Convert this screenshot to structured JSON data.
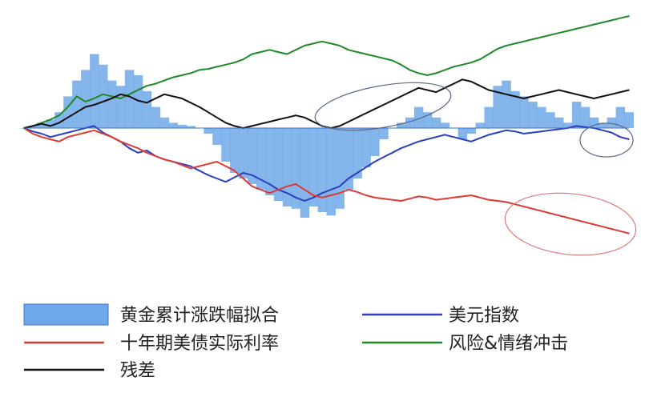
{
  "chart_data": {
    "type": "area",
    "title": "",
    "xlabel": "",
    "ylabel": "",
    "grid": false,
    "ylim": [
      -1.0,
      1.0
    ],
    "legend_position": "bottom",
    "series": [
      {
        "name": "黄金累计涨跌幅拟合",
        "kind": "area",
        "color": "#6fa8e8",
        "border": "#3a73c9",
        "values": [
          0.0,
          0.02,
          0.05,
          0.08,
          0.15,
          0.3,
          0.45,
          0.55,
          0.7,
          0.6,
          0.45,
          0.4,
          0.55,
          0.5,
          0.35,
          0.2,
          0.1,
          0.05,
          0.03,
          0.02,
          0.0,
          -0.05,
          -0.15,
          -0.3,
          -0.4,
          -0.45,
          -0.5,
          -0.55,
          -0.6,
          -0.65,
          -0.7,
          -0.72,
          -0.8,
          -0.7,
          -0.75,
          -0.78,
          -0.72,
          -0.55,
          -0.45,
          -0.35,
          -0.25,
          -0.1,
          0.0,
          0.05,
          0.1,
          0.2,
          0.15,
          0.1,
          0.05,
          0.0,
          -0.1,
          -0.05,
          0.05,
          0.2,
          0.4,
          0.45,
          0.35,
          0.3,
          0.25,
          0.2,
          0.15,
          0.1,
          0.05,
          0.25,
          0.2,
          0.1,
          0.05,
          0.1,
          0.2,
          0.15
        ]
      },
      {
        "name": "美元指数",
        "kind": "line",
        "color": "#2b3fbf",
        "values": [
          0.0,
          -0.03,
          -0.05,
          -0.08,
          -0.06,
          -0.04,
          -0.02,
          0.0,
          0.02,
          -0.04,
          -0.08,
          -0.12,
          -0.18,
          -0.22,
          -0.2,
          -0.25,
          -0.28,
          -0.3,
          -0.32,
          -0.34,
          -0.38,
          -0.42,
          -0.45,
          -0.48,
          -0.44,
          -0.4,
          -0.42,
          -0.46,
          -0.5,
          -0.55,
          -0.58,
          -0.62,
          -0.65,
          -0.62,
          -0.58,
          -0.55,
          -0.52,
          -0.45,
          -0.4,
          -0.35,
          -0.3,
          -0.26,
          -0.22,
          -0.18,
          -0.15,
          -0.12,
          -0.1,
          -0.08,
          -0.06,
          -0.08,
          -0.1,
          -0.12,
          -0.09,
          -0.06,
          -0.04,
          -0.02,
          -0.03,
          -0.05,
          -0.04,
          -0.03,
          -0.02,
          -0.01,
          0.0,
          0.02,
          0.01,
          0.0,
          -0.02,
          -0.04,
          -0.08,
          -0.1
        ]
      },
      {
        "name": "十年期美债实际利率",
        "kind": "line",
        "color": "#e03a34",
        "values": [
          0.0,
          -0.05,
          -0.08,
          -0.1,
          -0.12,
          -0.08,
          -0.06,
          -0.04,
          -0.02,
          -0.05,
          -0.08,
          -0.12,
          -0.15,
          -0.18,
          -0.22,
          -0.25,
          -0.28,
          -0.3,
          -0.33,
          -0.36,
          -0.34,
          -0.32,
          -0.3,
          -0.34,
          -0.38,
          -0.45,
          -0.52,
          -0.55,
          -0.58,
          -0.55,
          -0.52,
          -0.5,
          -0.55,
          -0.6,
          -0.62,
          -0.6,
          -0.58,
          -0.55,
          -0.57,
          -0.6,
          -0.62,
          -0.63,
          -0.64,
          -0.65,
          -0.63,
          -0.61,
          -0.62,
          -0.64,
          -0.63,
          -0.62,
          -0.61,
          -0.6,
          -0.62,
          -0.64,
          -0.65,
          -0.66,
          -0.68,
          -0.7,
          -0.72,
          -0.74,
          -0.76,
          -0.78,
          -0.8,
          -0.82,
          -0.84,
          -0.86,
          -0.88,
          -0.9,
          -0.92,
          -0.94
        ]
      },
      {
        "name": "风险&情绪冲击",
        "kind": "line",
        "color": "#1e8a2a",
        "values": [
          0.0,
          0.02,
          0.05,
          0.08,
          0.12,
          0.2,
          0.3,
          0.25,
          0.28,
          0.32,
          0.3,
          0.28,
          0.32,
          0.36,
          0.4,
          0.42,
          0.45,
          0.48,
          0.5,
          0.52,
          0.55,
          0.56,
          0.58,
          0.6,
          0.62,
          0.65,
          0.7,
          0.72,
          0.74,
          0.72,
          0.7,
          0.74,
          0.78,
          0.8,
          0.82,
          0.8,
          0.78,
          0.74,
          0.72,
          0.7,
          0.68,
          0.66,
          0.64,
          0.6,
          0.55,
          0.52,
          0.5,
          0.52,
          0.55,
          0.58,
          0.6,
          0.62,
          0.65,
          0.7,
          0.75,
          0.78,
          0.8,
          0.82,
          0.84,
          0.86,
          0.88,
          0.9,
          0.92,
          0.94,
          0.96,
          0.98,
          1.0,
          1.02,
          1.04,
          1.06
        ]
      },
      {
        "name": "残差",
        "kind": "line",
        "color": "#111111",
        "values": [
          0.0,
          0.02,
          0.04,
          0.02,
          0.05,
          0.1,
          0.15,
          0.2,
          0.22,
          0.25,
          0.28,
          0.32,
          0.3,
          0.26,
          0.24,
          0.28,
          0.32,
          0.3,
          0.28,
          0.24,
          0.2,
          0.15,
          0.1,
          0.05,
          0.02,
          0.0,
          0.02,
          0.04,
          0.06,
          0.08,
          0.1,
          0.12,
          0.1,
          0.06,
          0.02,
          0.0,
          0.02,
          0.06,
          0.1,
          0.14,
          0.18,
          0.22,
          0.26,
          0.3,
          0.34,
          0.38,
          0.36,
          0.34,
          0.38,
          0.42,
          0.46,
          0.44,
          0.4,
          0.36,
          0.34,
          0.32,
          0.3,
          0.28,
          0.3,
          0.32,
          0.34,
          0.36,
          0.34,
          0.32,
          0.3,
          0.28,
          0.3,
          0.32,
          0.34,
          0.36
        ]
      }
    ],
    "legend": [
      {
        "label": "黄金累计涨跌幅拟合",
        "kind": "box",
        "color": "#6fa8e8"
      },
      {
        "label": "美元指数",
        "kind": "line",
        "color": "#2b3fbf"
      },
      {
        "label": "十年期美债实际利率",
        "kind": "line",
        "color": "#e03a34"
      },
      {
        "label": "风险&情绪冲击",
        "kind": "line",
        "color": "#1e8a2a"
      },
      {
        "label": "残差",
        "kind": "line",
        "color": "#111111"
      }
    ],
    "annotations": [
      {
        "kind": "ellipse",
        "color": "#5a6a8a",
        "note": "highlighted area around residual"
      },
      {
        "kind": "ellipse",
        "color": "#5a6a8a",
        "note": "highlighted area on dollar index end"
      },
      {
        "kind": "ellipse",
        "color": "#e07a7a",
        "note": "highlighted area on real rate end"
      }
    ]
  }
}
